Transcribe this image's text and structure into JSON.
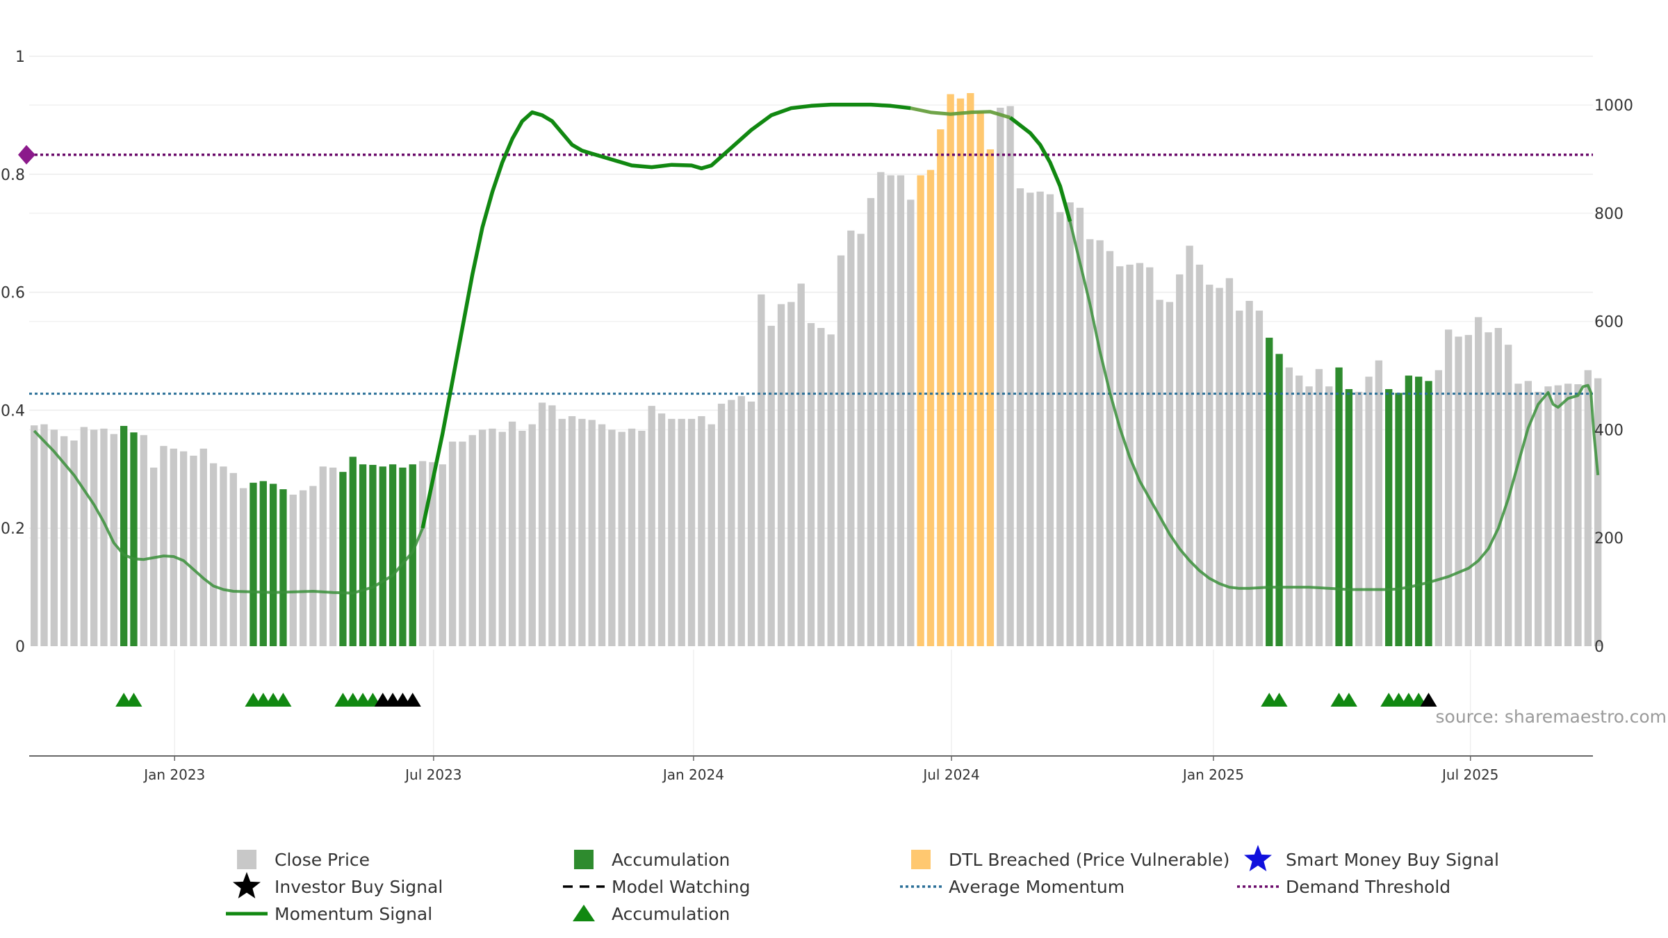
{
  "chart_data": {
    "type": "bar",
    "title": "",
    "source_label": "source: sharemaestro.com",
    "left_axis": {
      "ticks": [
        0,
        0.2,
        0.4,
        0.6,
        0.8,
        1
      ],
      "tick_labels": [
        "0",
        "0.2",
        "0.4",
        "0.6",
        "0.8",
        "1"
      ],
      "ylim": [
        0,
        1
      ]
    },
    "right_axis": {
      "ticks": [
        0,
        200,
        400,
        600,
        800,
        1000
      ],
      "tick_labels": [
        "0",
        "200",
        "400",
        "600",
        "800",
        "1000"
      ],
      "ylim": [
        0,
        1090
      ]
    },
    "x_ticks": [
      {
        "label": "Jan 2023",
        "pos": 14.1
      },
      {
        "label": "Jul 2023",
        "pos": 40.1
      },
      {
        "label": "Jan 2024",
        "pos": 66.2
      },
      {
        "label": "Jul 2024",
        "pos": 92.1
      },
      {
        "label": "Jan 2025",
        "pos": 118.4
      },
      {
        "label": "Jul 2025",
        "pos": 144.2
      }
    ],
    "x_range": [
      -0.5,
      156.5
    ],
    "colors": {
      "close": "#c8c8c8",
      "accumulation": "#2e8b2e",
      "dtl": "#ffc870",
      "momentum": "#118811",
      "average": "#2a6f97",
      "demand": "#6a0a6a",
      "marker_green": "#118811",
      "marker_black": "#000000",
      "smart_money": "#1010dd"
    },
    "series": [
      {
        "name": "Close Price",
        "axis": "right",
        "values": [
          408,
          410,
          400,
          388,
          380,
          405,
          400,
          402,
          392,
          407,
          395,
          390,
          330,
          370,
          365,
          360,
          352,
          365,
          338,
          332,
          320,
          292,
          302,
          305,
          300,
          290,
          280,
          288,
          296,
          332,
          330,
          322,
          350,
          336,
          335,
          332,
          336,
          330,
          336,
          342,
          340,
          336,
          378,
          378,
          390,
          400,
          402,
          396,
          415,
          398,
          410,
          450,
          445,
          420,
          425,
          420,
          418,
          410,
          400,
          396,
          402,
          398,
          444,
          430,
          420,
          420,
          420,
          425,
          410,
          448,
          455,
          462,
          452,
          650,
          592,
          632,
          636,
          670,
          597,
          588,
          576,
          722,
          768,
          762,
          828,
          876,
          870,
          870,
          825,
          870,
          880,
          955,
          1020,
          1012,
          1022,
          988,
          918,
          995,
          998,
          846,
          838,
          840,
          835,
          802,
          820,
          810,
          752,
          750,
          730,
          702,
          705,
          708,
          700,
          640,
          636,
          687,
          740,
          705,
          668,
          662,
          680,
          620,
          638,
          620,
          570,
          540,
          515,
          500,
          480,
          512,
          480,
          515,
          475,
          470,
          498,
          528,
          475,
          468,
          500,
          498,
          490,
          510,
          585,
          572,
          575,
          608,
          580,
          588,
          557,
          485,
          490,
          470,
          480,
          482,
          485,
          484,
          510,
          495
        ],
        "colors_by_index": {
          "9": "accumulation",
          "10": "accumulation",
          "22": "accumulation",
          "23": "accumulation",
          "24": "accumulation",
          "25": "accumulation",
          "31": "accumulation",
          "32": "accumulation",
          "33": "accumulation",
          "34": "accumulation",
          "35": "accumulation",
          "36": "accumulation",
          "37": "accumulation",
          "38": "accumulation",
          "89": "dtl",
          "90": "dtl",
          "91": "dtl",
          "92": "dtl",
          "93": "dtl",
          "94": "dtl",
          "95": "dtl",
          "96": "dtl",
          "124": "accumulation",
          "125": "accumulation",
          "131": "accumulation",
          "132": "accumulation",
          "136": "accumulation",
          "137": "accumulation",
          "138": "accumulation",
          "139": "accumulation",
          "140": "accumulation"
        }
      },
      {
        "name": "Momentum Signal",
        "axis": "left",
        "points": [
          [
            0,
            0.365
          ],
          [
            2,
            0.33
          ],
          [
            4,
            0.29
          ],
          [
            6,
            0.24
          ],
          [
            7,
            0.21
          ],
          [
            8,
            0.175
          ],
          [
            9,
            0.155
          ],
          [
            10,
            0.148
          ],
          [
            11,
            0.147
          ],
          [
            12,
            0.15
          ],
          [
            13,
            0.153
          ],
          [
            14,
            0.152
          ],
          [
            15,
            0.145
          ],
          [
            16,
            0.13
          ],
          [
            17,
            0.115
          ],
          [
            18,
            0.102
          ],
          [
            19,
            0.096
          ],
          [
            20,
            0.093
          ],
          [
            22,
            0.092
          ],
          [
            24,
            0.091
          ],
          [
            26,
            0.092
          ],
          [
            28,
            0.093
          ],
          [
            30,
            0.091
          ],
          [
            32,
            0.09
          ],
          [
            34,
            0.1
          ],
          [
            36,
            0.12
          ],
          [
            38,
            0.16
          ],
          [
            39,
            0.2
          ],
          [
            40,
            0.28
          ],
          [
            41,
            0.36
          ],
          [
            42,
            0.45
          ],
          [
            43,
            0.54
          ],
          [
            44,
            0.63
          ],
          [
            45,
            0.71
          ],
          [
            46,
            0.77
          ],
          [
            47,
            0.82
          ],
          [
            48,
            0.86
          ],
          [
            49,
            0.89
          ],
          [
            50,
            0.905
          ],
          [
            51,
            0.9
          ],
          [
            52,
            0.89
          ],
          [
            53,
            0.87
          ],
          [
            54,
            0.85
          ],
          [
            55,
            0.84
          ],
          [
            56,
            0.835
          ],
          [
            58,
            0.825
          ],
          [
            60,
            0.815
          ],
          [
            62,
            0.812
          ],
          [
            64,
            0.816
          ],
          [
            66,
            0.815
          ],
          [
            67,
            0.81
          ],
          [
            68,
            0.815
          ],
          [
            70,
            0.845
          ],
          [
            72,
            0.875
          ],
          [
            74,
            0.9
          ],
          [
            76,
            0.912
          ],
          [
            78,
            0.916
          ],
          [
            80,
            0.918
          ],
          [
            82,
            0.918
          ],
          [
            84,
            0.918
          ],
          [
            85,
            0.917
          ],
          [
            86,
            0.916
          ],
          [
            88,
            0.912
          ],
          [
            90,
            0.905
          ],
          [
            92,
            0.902
          ],
          [
            94,
            0.905
          ],
          [
            96,
            0.906
          ],
          [
            98,
            0.896
          ],
          [
            100,
            0.87
          ],
          [
            101,
            0.85
          ],
          [
            102,
            0.82
          ],
          [
            103,
            0.78
          ],
          [
            104,
            0.72
          ],
          [
            105,
            0.65
          ],
          [
            106,
            0.58
          ],
          [
            107,
            0.5
          ],
          [
            108,
            0.43
          ],
          [
            109,
            0.37
          ],
          [
            110,
            0.32
          ],
          [
            111,
            0.28
          ],
          [
            112,
            0.25
          ],
          [
            113,
            0.22
          ],
          [
            114,
            0.19
          ],
          [
            115,
            0.165
          ],
          [
            116,
            0.145
          ],
          [
            117,
            0.128
          ],
          [
            118,
            0.115
          ],
          [
            119,
            0.106
          ],
          [
            120,
            0.1
          ],
          [
            121,
            0.098
          ],
          [
            122,
            0.098
          ],
          [
            124,
            0.1
          ],
          [
            126,
            0.1
          ],
          [
            128,
            0.1
          ],
          [
            130,
            0.098
          ],
          [
            132,
            0.096
          ],
          [
            134,
            0.096
          ],
          [
            136,
            0.096
          ],
          [
            137,
            0.097
          ],
          [
            138,
            0.1
          ],
          [
            140,
            0.108
          ],
          [
            142,
            0.118
          ],
          [
            144,
            0.132
          ],
          [
            145,
            0.145
          ],
          [
            146,
            0.165
          ],
          [
            147,
            0.2
          ],
          [
            148,
            0.25
          ],
          [
            149,
            0.31
          ],
          [
            150,
            0.37
          ],
          [
            151,
            0.41
          ],
          [
            152,
            0.43
          ],
          [
            152.5,
            0.41
          ],
          [
            153,
            0.405
          ],
          [
            154,
            0.42
          ],
          [
            155,
            0.425
          ],
          [
            155.5,
            0.44
          ],
          [
            156,
            0.442
          ],
          [
            156.3,
            0.43
          ],
          [
            156.6,
            0.36
          ],
          [
            157,
            0.29
          ]
        ]
      },
      {
        "name": "Average Momentum",
        "axis": "left",
        "value": 0.428
      },
      {
        "name": "Demand Threshold",
        "axis": "left",
        "value": 0.833
      }
    ],
    "accumulation_markers": [
      {
        "x": 9,
        "color": "marker_green"
      },
      {
        "x": 10,
        "color": "marker_green"
      },
      {
        "x": 22,
        "color": "marker_green"
      },
      {
        "x": 23,
        "color": "marker_green"
      },
      {
        "x": 24,
        "color": "marker_green"
      },
      {
        "x": 25,
        "color": "marker_green"
      },
      {
        "x": 31,
        "color": "marker_green"
      },
      {
        "x": 32,
        "color": "marker_green"
      },
      {
        "x": 33,
        "color": "marker_green"
      },
      {
        "x": 34,
        "color": "marker_green"
      },
      {
        "x": 35,
        "color": "marker_black"
      },
      {
        "x": 36,
        "color": "marker_black"
      },
      {
        "x": 37,
        "color": "marker_black"
      },
      {
        "x": 38,
        "color": "marker_black"
      },
      {
        "x": 124,
        "color": "marker_green"
      },
      {
        "x": 125,
        "color": "marker_green"
      },
      {
        "x": 131,
        "color": "marker_green"
      },
      {
        "x": 132,
        "color": "marker_green"
      },
      {
        "x": 136,
        "color": "marker_green"
      },
      {
        "x": 137,
        "color": "marker_green"
      },
      {
        "x": 138,
        "color": "marker_green"
      },
      {
        "x": 139,
        "color": "marker_green"
      },
      {
        "x": 140,
        "color": "marker_black"
      }
    ],
    "threshold_marker": {
      "value": 0.833
    },
    "legend": [
      {
        "label": "Close Price",
        "symbol": "square",
        "color": "close"
      },
      {
        "label": "Accumulation",
        "symbol": "square",
        "color": "accumulation"
      },
      {
        "label": "DTL Breached (Price Vulnerable)",
        "symbol": "square",
        "color": "dtl"
      },
      {
        "label": "Smart Money Buy Signal",
        "symbol": "star",
        "color": "smart_money"
      },
      {
        "label": "Investor Buy Signal",
        "symbol": "star",
        "color": "marker_black"
      },
      {
        "label": "Model Watching",
        "symbol": "dash",
        "color": "marker_black"
      },
      {
        "label": "Average Momentum",
        "symbol": "dot",
        "color": "average"
      },
      {
        "label": "Demand Threshold",
        "symbol": "dot",
        "color": "demand"
      },
      {
        "label": "Momentum Signal",
        "symbol": "line",
        "color": "momentum"
      },
      {
        "label": "Accumulation",
        "symbol": "triangle",
        "color": "marker_green"
      }
    ],
    "legend_placement": "bottom"
  }
}
